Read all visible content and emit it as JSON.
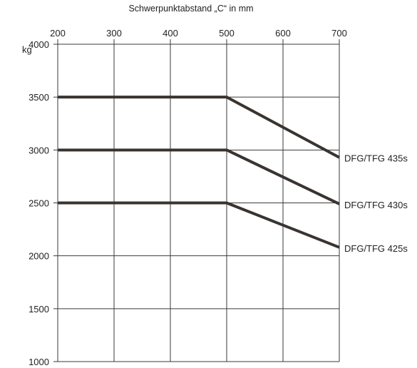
{
  "chart_data": {
    "type": "line",
    "title": "Schwerpunktabstand „C“ in mm",
    "xlabel": "Schwerpunktabstand „C“ in mm",
    "ylabel": "kg",
    "xlim": [
      200,
      700
    ],
    "ylim": [
      1000,
      4000
    ],
    "x_ticks": [
      200,
      300,
      400,
      500,
      600,
      700
    ],
    "y_ticks": [
      1000,
      1500,
      2000,
      2500,
      3000,
      3500,
      4000
    ],
    "x_tick_labels": [
      "200",
      "300",
      "400",
      "500",
      "600",
      "700"
    ],
    "y_tick_labels": [
      "1000",
      "1500",
      "2000",
      "2500",
      "3000",
      "3500",
      "4000"
    ],
    "x_axis_position": "top",
    "grid": true,
    "series": [
      {
        "name": "DFG/TFG 435s",
        "x": [
          200,
          500,
          700
        ],
        "y": [
          3500,
          3500,
          2930
        ]
      },
      {
        "name": "DFG/TFG 430s",
        "x": [
          200,
          500,
          700
        ],
        "y": [
          3000,
          3000,
          2490
        ]
      },
      {
        "name": "DFG/TFG 425s",
        "x": [
          200,
          500,
          700
        ],
        "y": [
          2500,
          2500,
          2080
        ]
      }
    ],
    "colors": {
      "line": "#3a3431",
      "grid": "#3a3a3a",
      "text": "#222222"
    }
  }
}
